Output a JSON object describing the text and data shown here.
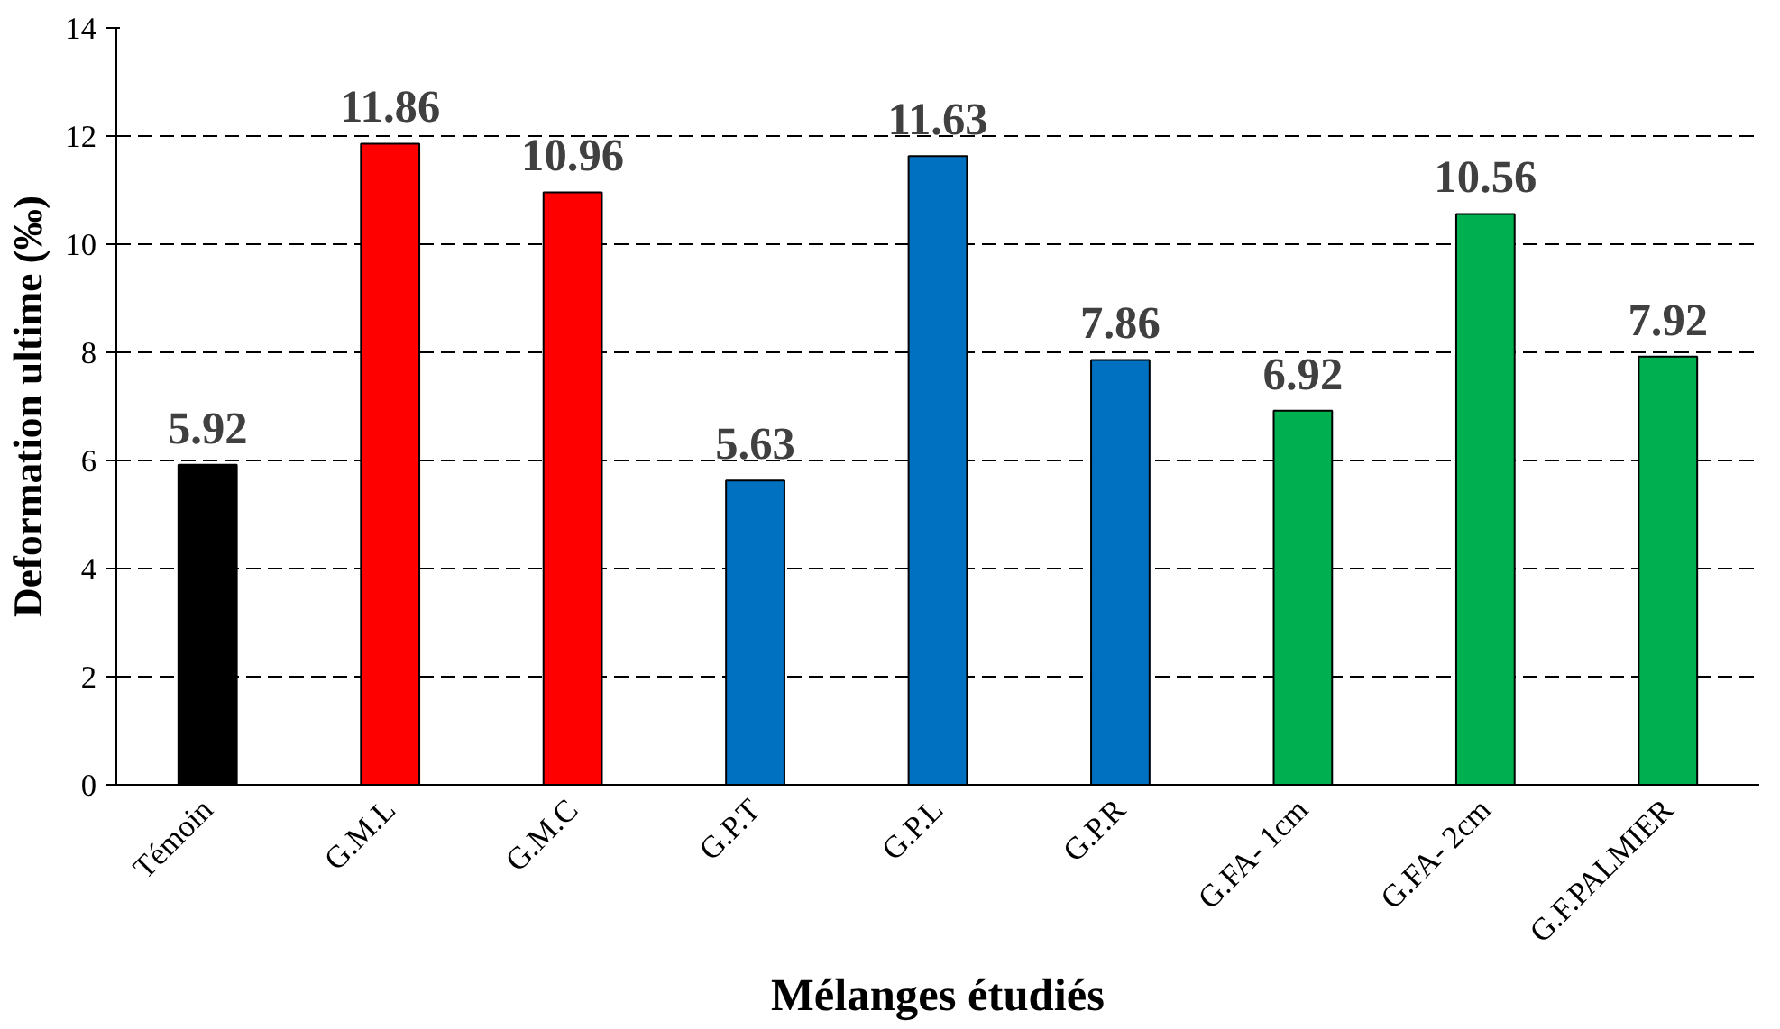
{
  "chart_data": {
    "type": "bar",
    "xlabel": "Mélanges étudiés",
    "ylabel": "Deformation ultime (‰)",
    "categories": [
      "Témoin",
      "G.M.L",
      "G.M.C",
      "G.P.T",
      "G.P.L",
      "G.P.R",
      "G.FA- 1cm",
      "G.FA- 2cm",
      "G.F.PALMIER"
    ],
    "values": [
      5.92,
      11.86,
      10.96,
      5.63,
      11.63,
      7.86,
      6.92,
      10.56,
      7.92
    ],
    "colors": [
      "#000000",
      "#ff0000",
      "#ff0000",
      "#0070c0",
      "#0070c0",
      "#0070c0",
      "#00b050",
      "#00b050",
      "#00b050"
    ],
    "ylim": [
      0,
      14
    ],
    "yticks": [
      0,
      2,
      4,
      6,
      8,
      10,
      12,
      14
    ],
    "grid": "y",
    "line_style": "dashed",
    "data_labels": true
  }
}
